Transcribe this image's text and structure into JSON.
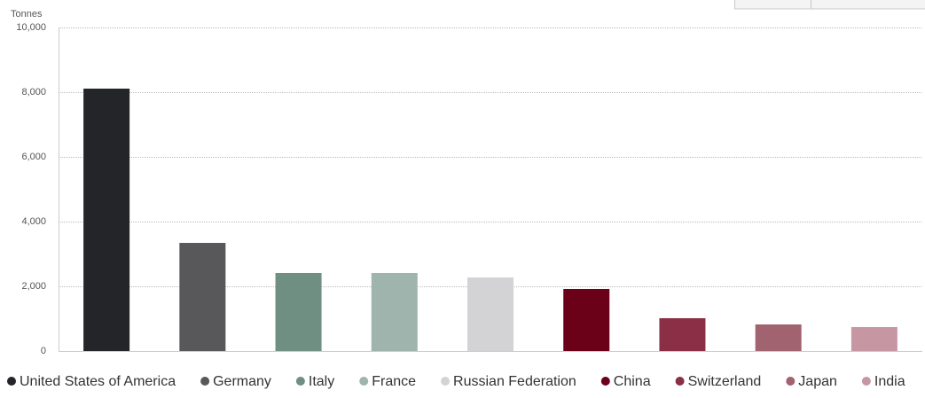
{
  "chart_data": {
    "type": "bar",
    "y_label": "Tonnes",
    "categories": [
      "United States of America",
      "Germany",
      "Italy",
      "France",
      "Russian Federation",
      "China",
      "Switzerland",
      "Japan",
      "India"
    ],
    "values": [
      8110,
      3342,
      2411,
      2411,
      2274,
      1918,
      1014,
      822,
      740
    ],
    "colors": [
      "#232529",
      "#58585a",
      "#6e8f81",
      "#9fb4ad",
      "#d3d3d5",
      "#6b0019",
      "#8a2f45",
      "#a1636f",
      "#c697a2"
    ],
    "ylim": [
      0,
      10000
    ],
    "yticks": [
      0,
      {
        "value": 2000,
        "label": "2,000"
      },
      {
        "value": 4000,
        "label": "4,000"
      },
      {
        "value": 6000,
        "label": "6,000"
      },
      {
        "value": 8000,
        "label": "8,000"
      },
      {
        "value": 10000,
        "label": "10,000"
      }
    ],
    "grid": true
  }
}
